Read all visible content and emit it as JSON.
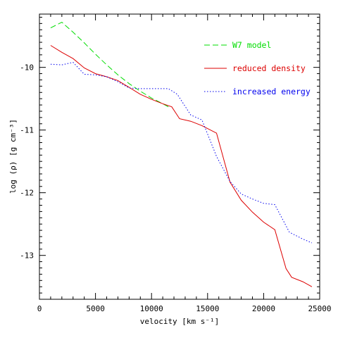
{
  "chart_data": {
    "type": "line",
    "title": "",
    "xlabel": "velocity [km s⁻¹]",
    "ylabel": "log (ρ) [g cm⁻³]",
    "xlim": [
      0,
      25000
    ],
    "ylim": [
      -13.7,
      -9.15
    ],
    "xticks": [
      0,
      5000,
      10000,
      15000,
      20000,
      25000
    ],
    "xtick_labels": [
      "0",
      "5000",
      "10000",
      "15000",
      "20000",
      "25000"
    ],
    "yticks": [
      -10,
      -11,
      -12,
      -13
    ],
    "ytick_labels": [
      "-10",
      "-11",
      "-12",
      "-13"
    ],
    "grid": false,
    "legend_position": "top-right",
    "series": [
      {
        "name": "W7 model",
        "color": "#00dd00",
        "style": "dashed",
        "x": [
          1000,
          2000,
          3000,
          4000,
          5000,
          6000,
          7000,
          8000,
          9000,
          10000,
          11000,
          11500
        ],
        "y": [
          -9.37,
          -9.28,
          -9.44,
          -9.61,
          -9.79,
          -9.96,
          -10.12,
          -10.26,
          -10.38,
          -10.49,
          -10.58,
          -10.63
        ]
      },
      {
        "name": "reduced density",
        "color": "#dd0000",
        "style": "solid",
        "x": [
          1000,
          2000,
          3000,
          4000,
          5000,
          6000,
          7000,
          8000,
          9000,
          10000,
          11000,
          11800,
          12500,
          13500,
          14500,
          15800,
          17000,
          18000,
          19000,
          20000,
          21000,
          22000,
          22500,
          23500,
          24300
        ],
        "y": [
          -9.65,
          -9.76,
          -9.86,
          -10.01,
          -10.1,
          -10.15,
          -10.21,
          -10.32,
          -10.43,
          -10.51,
          -10.58,
          -10.63,
          -10.82,
          -10.86,
          -10.93,
          -11.05,
          -11.83,
          -12.12,
          -12.31,
          -12.47,
          -12.59,
          -13.21,
          -13.35,
          -13.42,
          -13.5
        ]
      },
      {
        "name": "increased energy",
        "color": "#0000ee",
        "style": "dotted",
        "x": [
          1000,
          2000,
          3000,
          4000,
          5000,
          6000,
          7000,
          8000,
          9000,
          10000,
          11500,
          12300,
          13500,
          14500,
          15800,
          17000,
          18000,
          19000,
          20000,
          21000,
          22300,
          23500,
          24300
        ],
        "y": [
          -9.95,
          -9.96,
          -9.92,
          -10.11,
          -10.12,
          -10.15,
          -10.23,
          -10.33,
          -10.34,
          -10.34,
          -10.34,
          -10.43,
          -10.76,
          -10.84,
          -11.42,
          -11.82,
          -12.02,
          -12.1,
          -12.17,
          -12.19,
          -12.63,
          -12.74,
          -12.8
        ]
      }
    ]
  }
}
